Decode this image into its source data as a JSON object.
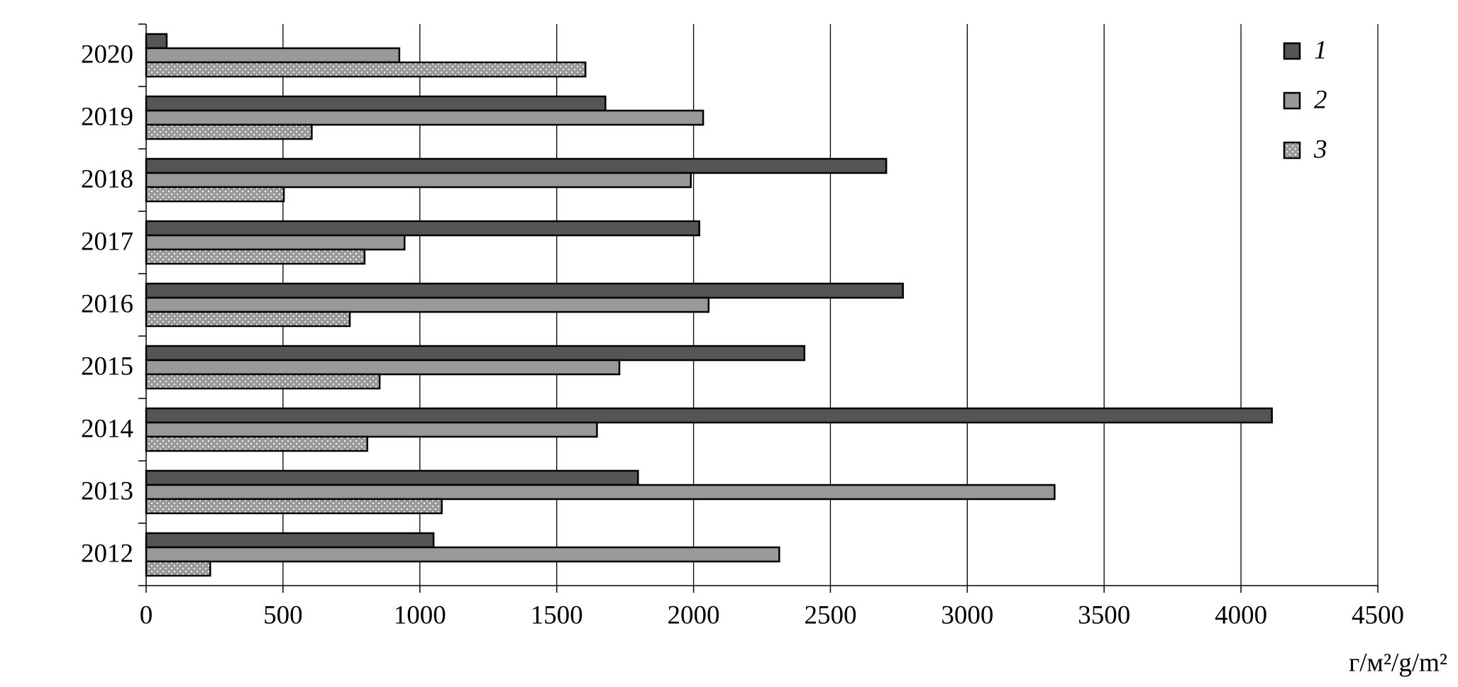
{
  "chart_data": {
    "type": "hbar",
    "x_label": "г/м²/g/m²",
    "categories": [
      "2012",
      "2013",
      "2014",
      "2015",
      "2016",
      "2017",
      "2018",
      "2019",
      "2020"
    ],
    "series": [
      {
        "name": "1",
        "color": "#555555",
        "values": [
          1050,
          1797,
          4113,
          2405,
          2765,
          2021,
          2704,
          1678,
          75
        ]
      },
      {
        "name": "2",
        "color": "#999999",
        "values": [
          2313,
          3319,
          1647,
          1729,
          2055,
          944,
          1990,
          2035,
          925
        ]
      },
      {
        "name": "3",
        "color": "#9a9a9a",
        "pattern": "dots",
        "values": [
          234,
          1080,
          808,
          853,
          744,
          798,
          503,
          605,
          1605
        ]
      }
    ],
    "xlim": [
      0,
      4500
    ],
    "xticks": [
      0,
      500,
      1000,
      1500,
      2000,
      2500,
      3000,
      3500,
      4000,
      4500
    ],
    "grid": true,
    "legend": "upper right"
  }
}
